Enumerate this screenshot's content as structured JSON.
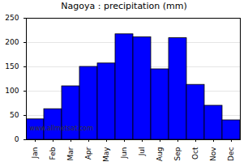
{
  "chart_data": {
    "type": "bar",
    "title": "Nagoya : precipitation (mm)",
    "categories": [
      "Jan",
      "Feb",
      "Mar",
      "Apr",
      "May",
      "Jun",
      "Jul",
      "Aug",
      "Sep",
      "Oct",
      "Nov",
      "Dec"
    ],
    "values": [
      42,
      63,
      110,
      150,
      157,
      217,
      211,
      145,
      209,
      113,
      70,
      40
    ],
    "color": "#0000ff",
    "ylim": [
      0,
      250
    ],
    "yticks": [
      0,
      50,
      100,
      150,
      200,
      250
    ],
    "grid": true,
    "annotations": [
      "www.allmetsat.com"
    ]
  }
}
